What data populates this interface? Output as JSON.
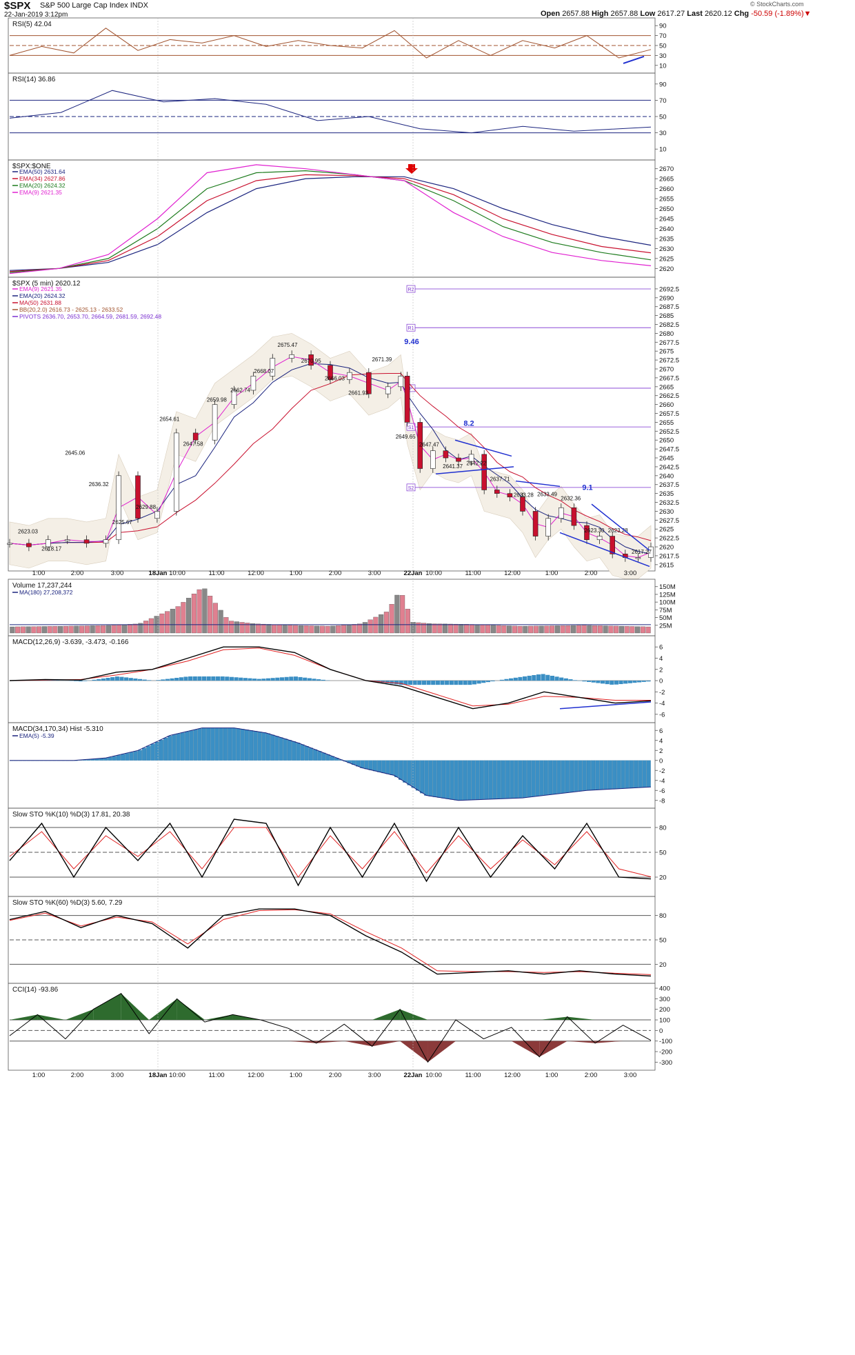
{
  "header": {
    "symbol": "$SPX",
    "name": "S&P 500 Large Cap Index",
    "exchange": "INDX",
    "date": "22-Jan-2019 3:12pm",
    "open_label": "Open",
    "open": "2657.88",
    "high_label": "High",
    "high": "2657.88",
    "low_label": "Low",
    "low": "2617.27",
    "last_label": "Last",
    "last": "2620.12",
    "chg_label": "Chg",
    "chg": "-50.59 (-1.89%)",
    "logo": "© StockCharts.com"
  },
  "colors": {
    "price_down": "#c8102e",
    "price_up": "#ffffff",
    "ema9": "#e020d0",
    "ema20": "#1a237e",
    "ma50": "#c8102e",
    "ema34": "#c8102e",
    "ema20_green": "#1b7a1b",
    "rsi5_fill": "#a0522d",
    "rsi14_fill": "#1a237e",
    "macd_hist": "#3b8fc4",
    "cci_pos": "#2e6b2e",
    "cci_neg": "#8b3a3a",
    "bband_fill": "#f4efe6",
    "pivot": "#7a2fd0",
    "trendline": "#1f2fd0"
  },
  "chart_data": [
    {
      "type": "line",
      "name": "RSI(5)",
      "title": "RSI(5) 42.04",
      "yticks": [
        90,
        70,
        50,
        30,
        10
      ],
      "ylim": [
        0,
        100
      ],
      "levels": [
        70,
        30
      ],
      "x": [
        0,
        5,
        10,
        15,
        20,
        25,
        30,
        35,
        40,
        45,
        50,
        55,
        60,
        65,
        70,
        75,
        80,
        85,
        90,
        95,
        100
      ],
      "values": [
        30,
        48,
        35,
        85,
        40,
        62,
        55,
        70,
        48,
        60,
        50,
        45,
        80,
        25,
        60,
        30,
        60,
        45,
        70,
        25,
        42
      ]
    },
    {
      "type": "line",
      "name": "RSI(14)",
      "title": "RSI(14) 36.86",
      "yticks": [
        90,
        70,
        50,
        30,
        10
      ],
      "ylim": [
        0,
        100
      ],
      "levels": [
        70,
        50,
        30
      ],
      "x": [
        0,
        8,
        16,
        24,
        32,
        40,
        48,
        56,
        64,
        72,
        80,
        88,
        100
      ],
      "values": [
        48,
        55,
        82,
        68,
        72,
        65,
        45,
        50,
        35,
        30,
        38,
        32,
        37
      ]
    },
    {
      "type": "line",
      "name": "$SPX:$ONE",
      "title": "$SPX:$ONE",
      "legend": [
        "EMA(50) 2631.64",
        "EMA(34) 2627.86",
        "EMA(20) 2624.32",
        "EMA(9) 2621.35"
      ],
      "yticks": [
        2670,
        2665,
        2660,
        2655,
        2650,
        2645,
        2640,
        2635,
        2630,
        2625,
        2620
      ],
      "ylim": [
        2617,
        2673
      ],
      "series": [
        {
          "name": "EMA(50)",
          "values": [
            2619,
            2620,
            2623,
            2632,
            2648,
            2660,
            2665,
            2666,
            2666,
            2660,
            2650,
            2642,
            2636,
            2631.64
          ]
        },
        {
          "name": "EMA(34)",
          "values": [
            2618.5,
            2620,
            2624,
            2636,
            2654,
            2664,
            2667,
            2666.5,
            2665,
            2657,
            2645,
            2637,
            2631,
            2627.86
          ]
        },
        {
          "name": "EMA(20)",
          "values": [
            2618,
            2620,
            2625,
            2640,
            2660,
            2668,
            2669,
            2667,
            2664,
            2654,
            2641,
            2633,
            2628,
            2624.32
          ]
        },
        {
          "name": "EMA(9)",
          "values": [
            2617.5,
            2620,
            2627,
            2645,
            2668,
            2672,
            2670,
            2667,
            2664,
            2648,
            2636,
            2628,
            2624,
            2621.35
          ]
        }
      ]
    },
    {
      "type": "candlestick",
      "name": "$SPX (5 min)",
      "title": "$SPX (5 min) 2620.12",
      "legend": [
        "EMA(9) 2621.35",
        "EMA(20) 2624.32",
        "MA(50) 2631.88",
        "BB(20,2.0) 2616.73 - 2625.13 - 2633.52",
        "PIVOTS 2636.70, 2653.70, 2664.59, 2681.59, 2692.48"
      ],
      "yticks": [
        2692.5,
        2690,
        2687.5,
        2685,
        2682.5,
        2680,
        2677.5,
        2675,
        2672.5,
        2670,
        2667.5,
        2665,
        2662.5,
        2660,
        2657.5,
        2655,
        2652.5,
        2650,
        2647.5,
        2645,
        2642.5,
        2640,
        2637.5,
        2635,
        2632.5,
        2630,
        2627.5,
        2625,
        2622.5,
        2620,
        2617.5,
        2615
      ],
      "ylim": [
        2614,
        2695
      ],
      "pivots": [
        {
          "label": "R2",
          "value": 2692.48
        },
        {
          "label": "R1",
          "value": 2681.59
        },
        {
          "label": "P",
          "value": 2664.59
        },
        {
          "label": "S1",
          "value": 2653.7
        },
        {
          "label": "S2",
          "value": 2636.7
        }
      ],
      "annotations": [
        {
          "text": "2623.03",
          "value": 2623.03
        },
        {
          "text": "2618.17",
          "value": 2618.17
        },
        {
          "text": "2645.06",
          "value": 2645.06
        },
        {
          "text": "2636.32",
          "value": 2636.32
        },
        {
          "text": "2625.67",
          "value": 2625.67
        },
        {
          "text": "2629.88",
          "value": 2629.88
        },
        {
          "text": "2654.61",
          "value": 2654.61
        },
        {
          "text": "2647.58",
          "value": 2647.58
        },
        {
          "text": "2659.98",
          "value": 2659.98
        },
        {
          "text": "2662.74",
          "value": 2662.74
        },
        {
          "text": "2668.07",
          "value": 2668.07
        },
        {
          "text": "2675.47",
          "value": 2675.47
        },
        {
          "text": "2670.95",
          "value": 2670.95
        },
        {
          "text": "2666.03",
          "value": 2666.03
        },
        {
          "text": "2661.93",
          "value": 2661.93
        },
        {
          "text": "2671.39",
          "value": 2671.39
        },
        {
          "text": "2649.65",
          "value": 2649.65
        },
        {
          "text": "2647.47",
          "value": 2647.47
        },
        {
          "text": "2641.37",
          "value": 2641.37
        },
        {
          "text": "2642.22",
          "value": 2642.22
        },
        {
          "text": "2637.71",
          "value": 2637.71
        },
        {
          "text": "2633.28",
          "value": 2633.28
        },
        {
          "text": "2633.49",
          "value": 2633.49
        },
        {
          "text": "2632.36",
          "value": 2632.36
        },
        {
          "text": "2623.30",
          "value": 2623.3
        },
        {
          "text": "2623.28",
          "value": 2623.28
        },
        {
          "text": "2617.27",
          "value": 2617.27
        }
      ],
      "callouts": [
        "9.46",
        "8.2",
        "9.1"
      ],
      "x": [
        0,
        3,
        6,
        9,
        12,
        15,
        17,
        20,
        23,
        26,
        29,
        32,
        35,
        38,
        41,
        44,
        47,
        50,
        53,
        56,
        59,
        61,
        62,
        64,
        66,
        68,
        70,
        72,
        74,
        76,
        78,
        80,
        82,
        84,
        86,
        88,
        90,
        92,
        94,
        96,
        98,
        100
      ],
      "close": [
        2621,
        2620,
        2622,
        2622,
        2621,
        2622,
        2640,
        2628,
        2630,
        2652,
        2650,
        2660,
        2664,
        2668,
        2673,
        2674,
        2671,
        2667,
        2669,
        2663,
        2665,
        2668,
        2655,
        2642,
        2647,
        2645,
        2644,
        2646,
        2636,
        2635,
        2634,
        2630,
        2623,
        2628,
        2631,
        2626,
        2622,
        2623,
        2618,
        2617,
        2617,
        2620
      ]
    },
    {
      "type": "bar",
      "name": "Volume",
      "title": "Volume 17,237,244",
      "legend": [
        "MA(180) 27,208,372"
      ],
      "yticks": [
        "150M",
        "125M",
        "100M",
        "75M",
        "50M",
        "25M"
      ],
      "ylim": [
        0,
        165
      ],
      "x": [
        0,
        8,
        16,
        20,
        26,
        30,
        34,
        38,
        44,
        50,
        55,
        59,
        61,
        63,
        66,
        72,
        80,
        90,
        100
      ],
      "values": [
        20,
        22,
        25,
        30,
        85,
        150,
        40,
        30,
        25,
        22,
        30,
        70,
        140,
        35,
        30,
        28,
        22,
        25,
        20
      ]
    },
    {
      "type": "line",
      "name": "MACD(12,26,9)",
      "title": "MACD(12,26,9) -3.639, -3.473, -0.166",
      "yticks": [
        6,
        4,
        2,
        0,
        -2,
        -4,
        -6
      ],
      "ylim": [
        -7,
        7.5
      ],
      "series": [
        {
          "name": "MACD",
          "values": [
            0,
            0.2,
            0.1,
            1.5,
            2,
            4,
            6,
            6,
            5,
            2,
            0,
            -1,
            -3,
            -5,
            -4,
            -2,
            -3,
            -4,
            -3.6
          ]
        },
        {
          "name": "Signal",
          "values": [
            0,
            0.1,
            0.2,
            1,
            2,
            3.5,
            5.5,
            5.8,
            4.5,
            2,
            0,
            -0.5,
            -2.5,
            -4.5,
            -4.2,
            -2.8,
            -3,
            -3.5,
            -3.5
          ]
        }
      ]
    },
    {
      "type": "bar",
      "name": "MACD(34,170,34) Hist",
      "title": "MACD(34,170,34) Hist -5.310",
      "legend": [
        "EMA(5) -5.39"
      ],
      "yticks": [
        6,
        4,
        2,
        0,
        -2,
        -4,
        -6,
        -8
      ],
      "ylim": [
        -9,
        7
      ],
      "x": [
        0,
        10,
        15,
        20,
        25,
        30,
        35,
        40,
        45,
        50,
        55,
        60,
        65,
        70,
        80,
        90,
        100
      ],
      "values": [
        0,
        0,
        0.5,
        2,
        5,
        6.5,
        6.5,
        5.5,
        3.5,
        1,
        -1.5,
        -3,
        -7,
        -8,
        -7.5,
        -6,
        -5.3
      ]
    },
    {
      "type": "line",
      "name": "Slow STO %K(10) %D(3)",
      "title": "Slow STO %K(10) %D(3) 17.81, 20.38",
      "yticks": [
        80,
        50,
        20
      ],
      "ylim": [
        0,
        100
      ],
      "levels": [
        80,
        50,
        20
      ],
      "series": [
        {
          "name": "%K",
          "values": [
            40,
            85,
            20,
            80,
            40,
            85,
            20,
            90,
            85,
            10,
            80,
            20,
            85,
            15,
            80,
            20,
            70,
            30,
            85,
            20,
            17.81
          ]
        },
        {
          "name": "%D",
          "values": [
            45,
            75,
            30,
            70,
            45,
            75,
            30,
            80,
            80,
            20,
            70,
            30,
            75,
            25,
            70,
            30,
            65,
            35,
            75,
            30,
            20.38
          ]
        }
      ]
    },
    {
      "type": "line",
      "name": "Slow STO %K(60) %D(3)",
      "title": "Slow STO %K(60) %D(3) 5.60, 7.29",
      "yticks": [
        80,
        50,
        20
      ],
      "ylim": [
        0,
        100
      ],
      "levels": [
        80,
        50,
        20
      ],
      "series": [
        {
          "name": "%K",
          "values": [
            75,
            85,
            65,
            80,
            70,
            40,
            80,
            88,
            88,
            80,
            55,
            35,
            8,
            10,
            12,
            8,
            12,
            8,
            5.6
          ]
        },
        {
          "name": "%D",
          "values": [
            74,
            83,
            67,
            78,
            72,
            45,
            75,
            86,
            87,
            82,
            60,
            40,
            12,
            11,
            11,
            10,
            11,
            9,
            7.29
          ]
        }
      ]
    },
    {
      "type": "area",
      "name": "CCI(14)",
      "title": "CCI(14) -93.86",
      "yticks": [
        400,
        300,
        200,
        100,
        0,
        -100,
        -200,
        -300
      ],
      "ylim": [
        -350,
        420
      ],
      "levels": [
        100,
        0,
        -100
      ],
      "values": [
        -50,
        150,
        -80,
        200,
        350,
        -30,
        300,
        80,
        150,
        100,
        20,
        -120,
        60,
        -150,
        200,
        -300,
        100,
        -80,
        30,
        -250,
        130,
        -120,
        50,
        -93.86
      ]
    }
  ],
  "xaxis": {
    "labels_top": [
      "1:00",
      "2:00",
      "3:00",
      "18Jan",
      "10:00",
      "11:00",
      "12:00",
      "1:00",
      "2:00",
      "3:00",
      "22Jan",
      "10:00",
      "11:00",
      "12:00",
      "1:00",
      "2:00",
      "3:00"
    ]
  }
}
